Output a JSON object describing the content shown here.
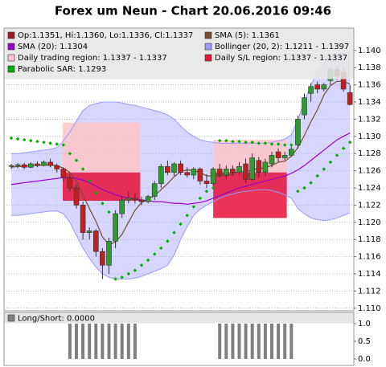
{
  "chart_data": [
    {
      "type": "candlestick",
      "title": "Forex um Neun - Chart 20.06.2016 09:46",
      "ylim": [
        1.1097,
        1.1426
      ],
      "yticks": [
        {
          "value": 1.11,
          "label": "1.110"
        },
        1.112,
        1.114,
        1.116,
        1.118,
        {
          "value": 1.12,
          "label": "1.120"
        },
        1.122,
        1.124,
        1.126,
        1.128,
        {
          "value": 1.13,
          "label": "1.130"
        },
        1.132,
        1.134,
        1.136,
        1.138,
        {
          "value": 1.14,
          "label": "1.140"
        }
      ],
      "grid": true,
      "candles": {
        "name": "Op:1.1351, Hi:1.1360, Lo:1.1336, Cl:1.1337",
        "color": "#9b1c1c",
        "up_color": "#2e9b2e",
        "down_color": "#c41e1e",
        "open": [
          1.1265,
          1.1266,
          1.1267,
          1.1264,
          1.1268,
          1.1266,
          1.127,
          1.1266,
          1.1262,
          1.1252,
          1.124,
          1.122,
          1.1188,
          1.119,
          1.1166,
          1.115,
          1.1178,
          1.121,
          1.1226,
          1.1228,
          1.1226,
          1.1224,
          1.123,
          1.1245,
          1.1265,
          1.1258,
          1.1268,
          1.1258,
          1.1255,
          1.1262,
          1.1248,
          1.1245,
          1.1262,
          1.1255,
          1.1262,
          1.1258,
          1.1268,
          1.125,
          1.1272,
          1.1258,
          1.1268,
          1.1282,
          1.1275,
          1.1278,
          1.129,
          1.1325,
          1.135,
          1.136,
          1.1355,
          1.1365,
          1.1378,
          1.1375,
          1.1351
        ],
        "high": [
          1.1268,
          1.1269,
          1.1269,
          1.127,
          1.1271,
          1.1272,
          1.1274,
          1.1268,
          1.1264,
          1.1256,
          1.1244,
          1.1224,
          1.1194,
          1.1192,
          1.117,
          1.1182,
          1.1214,
          1.123,
          1.1236,
          1.1234,
          1.123,
          1.1232,
          1.1248,
          1.1268,
          1.1272,
          1.127,
          1.1272,
          1.1264,
          1.1264,
          1.1264,
          1.1256,
          1.1264,
          1.1268,
          1.1266,
          1.1266,
          1.127,
          1.1274,
          1.128,
          1.1276,
          1.1274,
          1.1282,
          1.1286,
          1.1282,
          1.1288,
          1.1324,
          1.135,
          1.1362,
          1.1364,
          1.1362,
          1.138,
          1.1382,
          1.138,
          1.136
        ],
        "low": [
          1.1262,
          1.1263,
          1.1262,
          1.1263,
          1.1264,
          1.1265,
          1.1264,
          1.1258,
          1.1248,
          1.1236,
          1.1216,
          1.118,
          1.118,
          1.116,
          1.1134,
          1.114,
          1.117,
          1.1205,
          1.1222,
          1.1222,
          1.122,
          1.1222,
          1.1226,
          1.124,
          1.1255,
          1.1254,
          1.1255,
          1.1252,
          1.125,
          1.1244,
          1.124,
          1.1242,
          1.1252,
          1.125,
          1.1254,
          1.1256,
          1.1246,
          1.1248,
          1.1252,
          1.1254,
          1.1264,
          1.127,
          1.1272,
          1.1276,
          1.1286,
          1.132,
          1.134,
          1.135,
          1.1352,
          1.136,
          1.1366,
          1.1352,
          1.1336
        ],
        "close": [
          1.1266,
          1.1267,
          1.1264,
          1.1268,
          1.1266,
          1.127,
          1.1266,
          1.1262,
          1.1252,
          1.124,
          1.122,
          1.1188,
          1.119,
          1.1166,
          1.115,
          1.1178,
          1.121,
          1.1226,
          1.1228,
          1.1226,
          1.1224,
          1.123,
          1.1245,
          1.1265,
          1.1258,
          1.1268,
          1.1258,
          1.1255,
          1.1262,
          1.1248,
          1.1245,
          1.1262,
          1.1255,
          1.1262,
          1.1258,
          1.1265,
          1.125,
          1.1275,
          1.1258,
          1.127,
          1.1278,
          1.1275,
          1.1278,
          1.1285,
          1.132,
          1.1345,
          1.1358,
          1.1355,
          1.136,
          1.1378,
          1.137,
          1.1355,
          1.1337
        ]
      },
      "series": [
        {
          "name": "SMA (5): 1.1361",
          "type": "line",
          "color": "#7a4a2a",
          "values": [
            1.1264,
            1.1265,
            1.1265,
            1.1266,
            1.1266,
            1.1267,
            1.1267,
            1.1266,
            1.1263,
            1.1258,
            1.1248,
            1.1232,
            1.1216,
            1.1201,
            1.1183,
            1.1174,
            1.1177,
            1.1186,
            1.12,
            1.1214,
            1.1223,
            1.1227,
            1.1231,
            1.1238,
            1.1245,
            1.1253,
            1.1259,
            1.1261,
            1.126,
            1.1258,
            1.1254,
            1.1254,
            1.1254,
            1.1254,
            1.1256,
            1.126,
            1.1258,
            1.1262,
            1.1262,
            1.1264,
            1.1266,
            1.127,
            1.1271,
            1.1277,
            1.1287,
            1.1301,
            1.1317,
            1.1331,
            1.1348,
            1.1359,
            1.1364,
            1.1364,
            1.1361
          ]
        },
        {
          "name": "SMA (20): 1.1304",
          "type": "line",
          "color": "#9900cc",
          "values": [
            1.1244,
            1.1245,
            1.1246,
            1.1247,
            1.1248,
            1.1249,
            1.125,
            1.1251,
            1.1252,
            1.1252,
            1.1251,
            1.1249,
            1.1246,
            1.1242,
            1.1238,
            1.1235,
            1.1232,
            1.123,
            1.1228,
            1.1227,
            1.1226,
            1.1225,
            1.1224,
            1.1224,
            1.1223,
            1.1222,
            1.1222,
            1.1221,
            1.1222,
            1.1223,
            1.1225,
            1.1228,
            1.1231,
            1.1234,
            1.1237,
            1.124,
            1.1242,
            1.1244,
            1.1246,
            1.1248,
            1.125,
            1.1252,
            1.1254,
            1.1257,
            1.1261,
            1.1266,
            1.1272,
            1.1278,
            1.1284,
            1.129,
            1.1296,
            1.13,
            1.1304
          ]
        },
        {
          "name": "Bollinger (20, 2): 1.1211 - 1.1397",
          "type": "band",
          "color": "#9999ff",
          "upper": [
            1.128,
            1.128,
            1.1281,
            1.1282,
            1.1283,
            1.1284,
            1.1285,
            1.1287,
            1.1295,
            1.1305,
            1.1318,
            1.133,
            1.1336,
            1.1338,
            1.134,
            1.134,
            1.134,
            1.1339,
            1.1337,
            1.1336,
            1.1334,
            1.1332,
            1.133,
            1.1328,
            1.1325,
            1.132,
            1.1312,
            1.1305,
            1.13,
            1.1296,
            1.1294,
            1.1293,
            1.1292,
            1.1292,
            1.1292,
            1.1292,
            1.1292,
            1.1292,
            1.1292,
            1.1292,
            1.1293,
            1.1295,
            1.1297,
            1.1302,
            1.132,
            1.134,
            1.136,
            1.1375,
            1.1385,
            1.1392,
            1.1396,
            1.1398,
            1.1397
          ],
          "lower": [
            1.1208,
            1.1208,
            1.1209,
            1.121,
            1.1211,
            1.1212,
            1.1213,
            1.1213,
            1.121,
            1.12,
            1.1185,
            1.117,
            1.1158,
            1.1148,
            1.114,
            1.1136,
            1.1134,
            1.1134,
            1.1134,
            1.1135,
            1.1137,
            1.114,
            1.1143,
            1.1146,
            1.115,
            1.1162,
            1.118,
            1.1195,
            1.1208,
            1.1215,
            1.122,
            1.1224,
            1.1228,
            1.1231,
            1.1233,
            1.1235,
            1.1236,
            1.1237,
            1.1238,
            1.1238,
            1.1237,
            1.1235,
            1.1232,
            1.1228,
            1.1216,
            1.121,
            1.1205,
            1.1203,
            1.1202,
            1.1203,
            1.1205,
            1.1208,
            1.1211
          ]
        },
        {
          "name": "Parabolic SAR: 1.1293",
          "type": "dots",
          "color": "#00b000",
          "values": [
            1.1298,
            1.1297,
            1.1296,
            1.1295,
            1.1294,
            1.1293,
            1.1292,
            1.1291,
            1.129,
            1.128,
            1.1272,
            1.1262,
            1.1248,
            1.1234,
            1.1222,
            1.1212,
            1.1134,
            1.1136,
            1.114,
            1.1144,
            1.115,
            1.1156,
            1.1163,
            1.117,
            1.1178,
            1.1188,
            1.1198,
            1.1208,
            1.1218,
            1.1228,
            1.1236,
            1.124,
            1.1295,
            1.1295,
            1.1294,
            1.1294,
            1.1293,
            1.1293,
            1.1292,
            1.1292,
            1.1291,
            1.1291,
            1.129,
            1.129,
            1.1236,
            1.124,
            1.1246,
            1.1254,
            1.1262,
            1.127,
            1.1278,
            1.1286,
            1.1293
          ]
        }
      ],
      "regions": [
        {
          "name": "Daily trading region: 1.1337 - 1.1337",
          "color": "#ffc4c8",
          "boxes": [
            {
              "x": [
                7.9,
                19.8
              ],
              "y": [
                1.1258,
                1.1316
              ]
            },
            {
              "x": [
                31,
                42.3
              ],
              "y": [
                1.1258,
                1.1296
              ]
            }
          ]
        },
        {
          "name": "Daily S/L region: 1.1337 - 1.1337",
          "color": "#e8103a",
          "boxes": [
            {
              "x": [
                7.9,
                19.8
              ],
              "y": [
                1.1225,
                1.1258
              ]
            },
            {
              "x": [
                31,
                42.3
              ],
              "y": [
                1.1205,
                1.1258
              ]
            }
          ]
        }
      ]
    },
    {
      "type": "bar",
      "title": "Long/Short: 0.0000",
      "color": "#808080",
      "ylim": [
        -0.182,
        1.318
      ],
      "yticks": [
        {
          "value": 0,
          "label": "0.0"
        },
        {
          "value": 0.5,
          "label": "0.5"
        },
        {
          "value": 1,
          "label": "1.0"
        }
      ],
      "values": [
        0,
        0,
        0,
        0,
        0,
        0,
        0,
        0,
        0,
        1,
        1,
        1,
        1,
        1,
        1,
        1,
        1,
        1,
        1,
        1,
        0,
        0,
        0,
        0,
        0,
        0,
        0,
        0,
        0,
        0,
        0,
        0,
        1,
        1,
        1,
        1,
        1,
        1,
        1,
        1,
        1,
        1,
        1,
        1,
        0,
        0,
        0,
        0,
        0,
        0,
        0,
        0,
        0
      ]
    }
  ]
}
